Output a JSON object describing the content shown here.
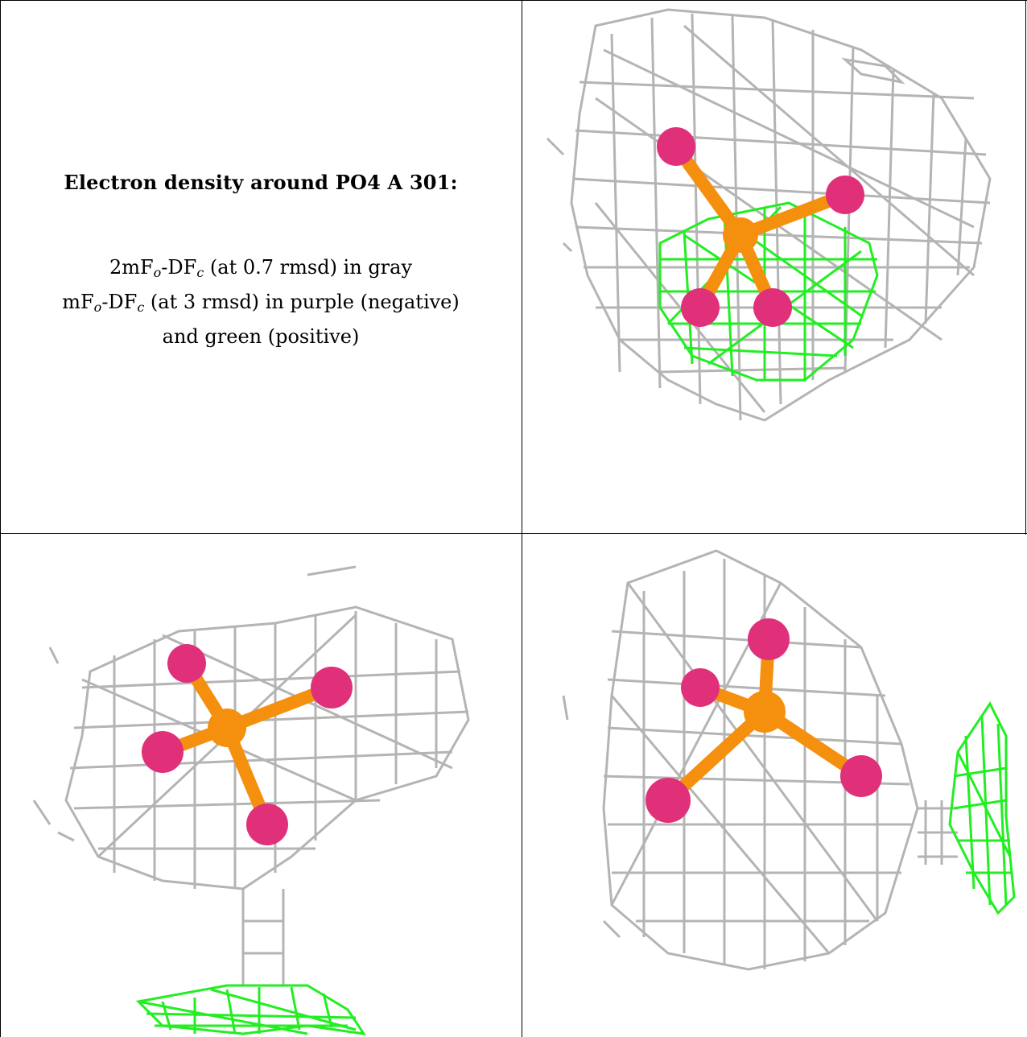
{
  "caption": {
    "title": "Electron density around PO4 A 301:",
    "line1": {
      "pre": "2mF",
      "sub1": "o",
      "mid": "-DF",
      "sub2": "c",
      "post": " (at 0.7 rmsd) in gray"
    },
    "line2": {
      "pre": "mF",
      "sub1": "o",
      "mid": "-DF",
      "sub2": "c",
      "post": " (at 3 rmsd) in purple (negative)"
    },
    "line3": "and green (positive)"
  },
  "colors": {
    "mesh_2fofc": "#b4b4b4",
    "mesh_fofc_positive": "#22ee22",
    "mesh_fofc_negative": "#b020d0",
    "atom_oxygen": "#e0307a",
    "atom_phosphorus": "#f5900f"
  },
  "panels": [
    {
      "view": "view-1",
      "ligand": "PO4 A 301"
    },
    {
      "view": "view-2",
      "ligand": "PO4 A 301"
    },
    {
      "view": "view-3",
      "ligand": "PO4 A 301"
    }
  ]
}
